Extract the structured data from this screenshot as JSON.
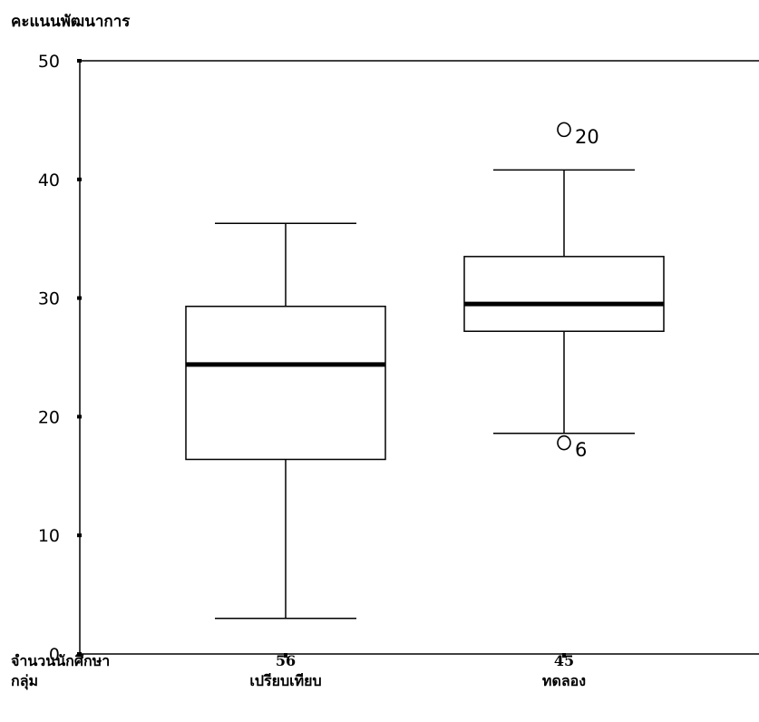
{
  "chart_data": {
    "type": "boxplot",
    "ylabel": "คะแนนพัฒนาการ",
    "ylim": [
      0,
      50
    ],
    "yticks": [
      "0",
      "10",
      "20",
      "30",
      "40",
      "50"
    ],
    "ytick_values": [
      0,
      10,
      20,
      30,
      40,
      50
    ],
    "row_labels": {
      "count": "จำนวนนักศึกษา",
      "group": "กลุ่ม"
    },
    "groups": [
      {
        "name": "เปรียบเทียบ",
        "n": "56",
        "whisker_low": 3,
        "q1": 16.4,
        "median": 24.4,
        "q3": 29.3,
        "whisker_high": 36.3,
        "outliers": []
      },
      {
        "name": "ทดลอง",
        "n": "45",
        "whisker_low": 18.6,
        "q1": 27.2,
        "median": 29.5,
        "q3": 33.5,
        "whisker_high": 40.8,
        "outliers": [
          {
            "value": 44.2,
            "label": "20"
          },
          {
            "value": 17.8,
            "label": "6"
          }
        ]
      }
    ]
  }
}
